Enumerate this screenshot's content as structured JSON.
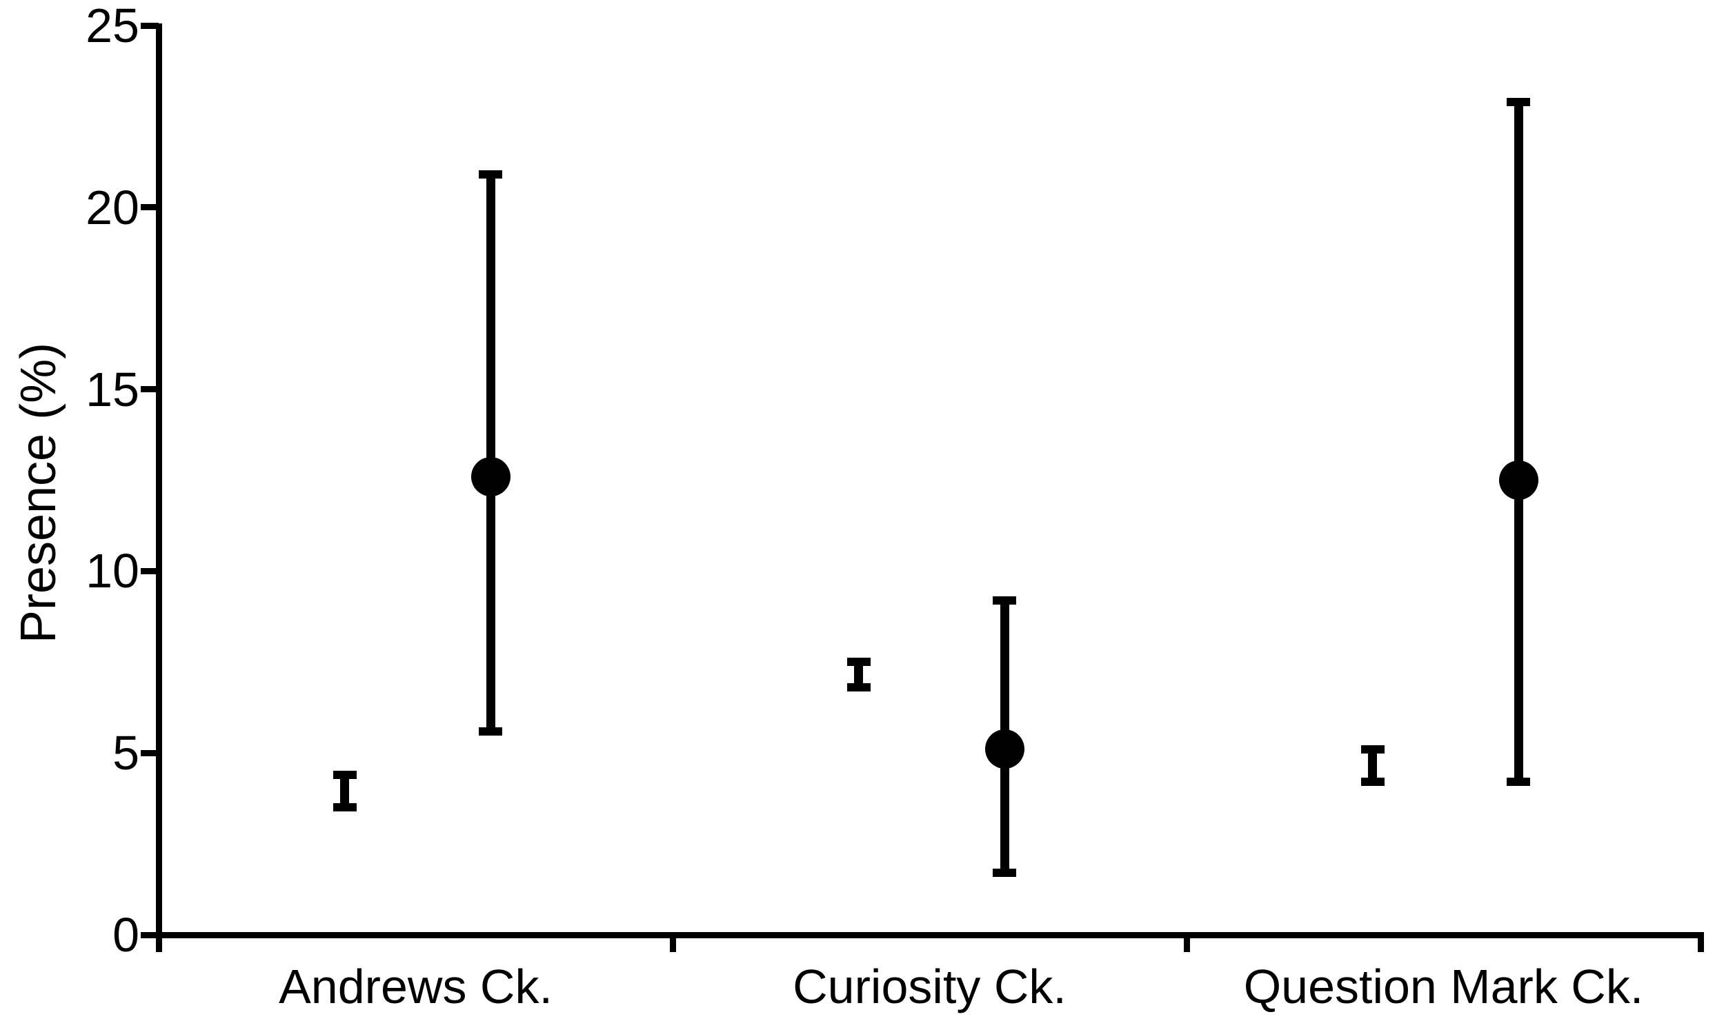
{
  "chart_data": {
    "type": "scatter",
    "title": "",
    "xlabel": "",
    "ylabel": "Presence (%)",
    "ylim": [
      0,
      25
    ],
    "yticks": [
      0,
      5,
      10,
      15,
      20,
      25
    ],
    "grid": false,
    "legend": "none",
    "background_color": "#ffffff",
    "marker_color": "#000000",
    "axis_color": "#000000",
    "categories": [
      "Andrews Ck.",
      "Curiosity Ck.",
      "Question Mark Ck."
    ],
    "series": [
      {
        "name": "small error-bar marker (left point in each group)",
        "marker": "error-bar-only",
        "offset_frac": 0.362,
        "points": [
          {
            "category": "Andrews Ck.",
            "y": 3.9,
            "lo": 3.5,
            "hi": 4.4
          },
          {
            "category": "Curiosity Ck.",
            "y": 7.1,
            "lo": 6.8,
            "hi": 7.5
          },
          {
            "category": "Question Mark Ck.",
            "y": 4.6,
            "lo": 4.2,
            "hi": 5.1
          }
        ]
      },
      {
        "name": "large filled-circle marker with wide error bars (right point in each group)",
        "marker": "filled-circle",
        "offset_frac": 0.646,
        "points": [
          {
            "category": "Andrews Ck.",
            "y": 12.6,
            "lo": 5.6,
            "hi": 20.9
          },
          {
            "category": "Curiosity Ck.",
            "y": 5.1,
            "lo": 1.7,
            "hi": 9.2
          },
          {
            "category": "Question Mark Ck.",
            "y": 12.5,
            "lo": 4.2,
            "hi": 22.9
          }
        ]
      }
    ]
  }
}
